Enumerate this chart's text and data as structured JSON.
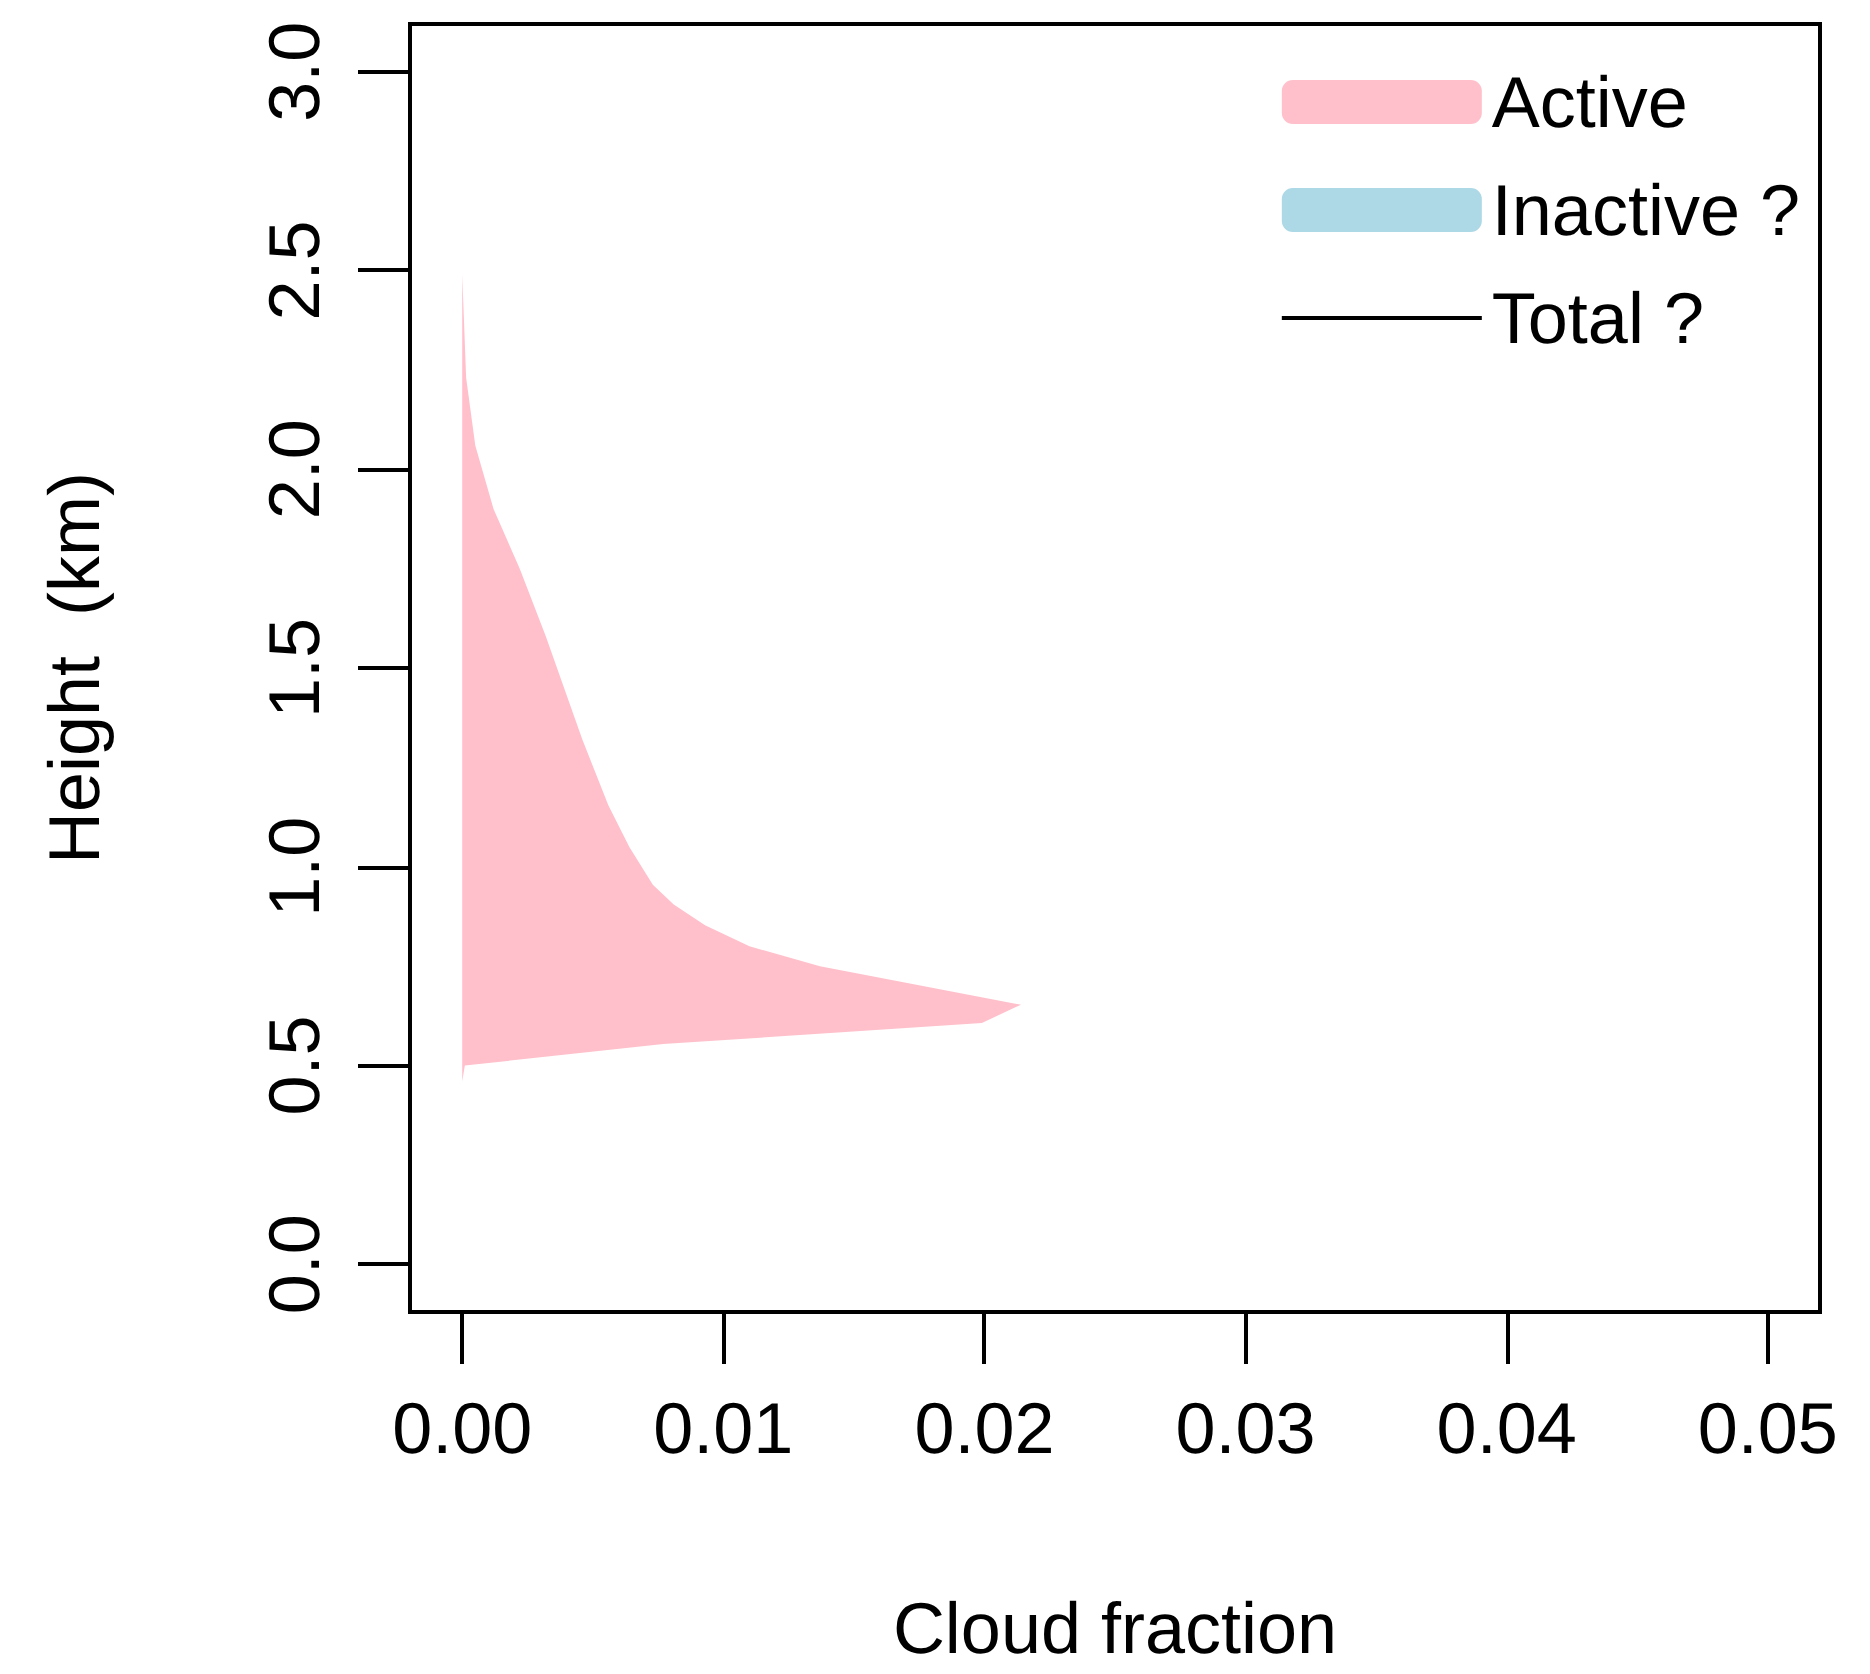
{
  "chart_data": {
    "type": "area",
    "orientation": "horizontal",
    "xlabel": "Cloud fraction",
    "ylabel": "Height  (km)",
    "x": [
      0.46,
      0.5,
      0.554,
      0.607,
      0.653,
      0.75,
      0.8,
      0.853,
      0.905,
      0.955,
      1.05,
      1.154,
      1.32,
      1.58,
      1.75,
      1.9,
      2.06,
      2.23,
      2.49,
      3.0
    ],
    "series": [
      {
        "name": "Active",
        "color": "#ffc0cb",
        "values": [
          0,
          0.0001,
          0.0077,
          0.0199,
          0.0214,
          0.0137,
          0.011,
          0.0093,
          0.0081,
          0.0073,
          0.0064,
          0.0056,
          0.0046,
          0.0032,
          0.0022,
          0.0012,
          0.0005,
          0.00015,
          0,
          0
        ]
      },
      {
        "name": "Inactive ?",
        "color": "#add8e6",
        "values": [
          null,
          null,
          null,
          null,
          null,
          null,
          null,
          null,
          null,
          null,
          null,
          null,
          null,
          null,
          null,
          null,
          null,
          null,
          null,
          null
        ]
      },
      {
        "name": "Total ?",
        "type": "line",
        "color": "#000000",
        "values": [
          null,
          null,
          null,
          null,
          null,
          null,
          null,
          null,
          null,
          null,
          null,
          null,
          null,
          null,
          null,
          null,
          null,
          null,
          null,
          null
        ]
      }
    ],
    "xlim": [
      -0.002,
      0.052
    ],
    "xticks": [
      {
        "value": 0,
        "label": "0.00"
      },
      0.01,
      0.02,
      0.03,
      0.04,
      0.05
    ],
    "ylim": [
      -0.12,
      3.12
    ],
    "yticks": [
      {
        "value": 0,
        "label": "0.0"
      },
      0.5,
      {
        "value": 1,
        "label": "1.0"
      },
      1.5,
      {
        "value": 2,
        "label": "2.0"
      },
      2.5,
      {
        "value": 3,
        "label": "3.0"
      }
    ],
    "grid": false,
    "legend": "top right"
  }
}
